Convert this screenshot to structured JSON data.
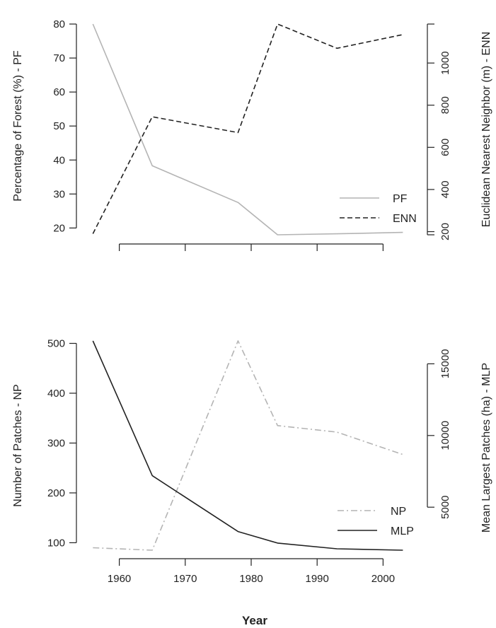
{
  "chart_data": [
    {
      "type": "line",
      "panel": "top",
      "x": [
        1956,
        1965,
        1978,
        1984,
        1993,
        2003
      ],
      "xlim": [
        1955,
        2005
      ],
      "x_ticks": [
        1960,
        1970,
        1980,
        1990,
        2000
      ],
      "show_x_tick_labels": false,
      "grid": false,
      "legend": "bottom-right",
      "y_left": {
        "label": "Percentage of Forest (%) - PF",
        "lim": [
          18,
          80
        ],
        "ticks": [
          20,
          30,
          40,
          50,
          60,
          70,
          80
        ]
      },
      "y_right": {
        "label": "Euclidean Nearest Neighbor (m) - ENN",
        "lim": [
          185,
          1185
        ],
        "ticks": [
          200,
          400,
          600,
          800,
          1000
        ]
      },
      "series": [
        {
          "name": "PF",
          "axis": "left",
          "style": "solid",
          "color": "#b4b4b4",
          "values": [
            80,
            38.3,
            27.5,
            18,
            18.3,
            18.7
          ]
        },
        {
          "name": "ENN",
          "axis": "right",
          "style": "dashed",
          "color": "#222222",
          "values": [
            190,
            745,
            670,
            1185,
            1070,
            1135
          ]
        }
      ]
    },
    {
      "type": "line",
      "panel": "bottom",
      "x": [
        1956,
        1965,
        1978,
        1984,
        1993,
        2003
      ],
      "xlim": [
        1955,
        2005
      ],
      "x_ticks": [
        1960,
        1970,
        1980,
        1990,
        2000
      ],
      "show_x_tick_labels": true,
      "xlabel": "Year",
      "grid": false,
      "legend": "bottom-right",
      "y_left": {
        "label": "Number of Patches - NP",
        "lim": [
          85,
          505
        ],
        "ticks": [
          100,
          200,
          300,
          400,
          500
        ]
      },
      "y_right": {
        "label": "Mean Largest Patches (ha) - MLP",
        "lim": [
          2000,
          16600
        ],
        "ticks": [
          5000,
          10000,
          15000
        ]
      },
      "series": [
        {
          "name": "NP",
          "axis": "left",
          "style": "dash-dot",
          "color": "#b4b4b4",
          "values": [
            90,
            85,
            505,
            335,
            322,
            277
          ]
        },
        {
          "name": "MLP",
          "axis": "right",
          "style": "solid",
          "color": "#222222",
          "values": [
            16600,
            7200,
            3300,
            2500,
            2100,
            2000
          ]
        }
      ]
    }
  ]
}
